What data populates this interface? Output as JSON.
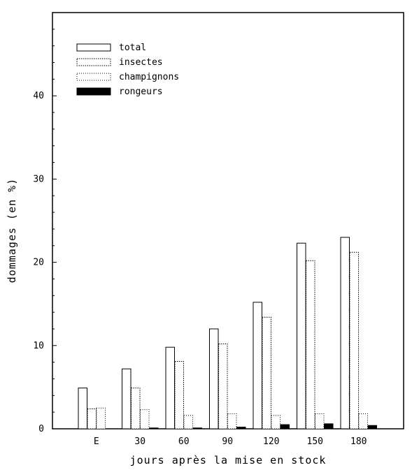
{
  "chart_data": {
    "type": "bar",
    "categories": [
      "E",
      "30",
      "60",
      "90",
      "120",
      "150",
      "180"
    ],
    "series": [
      {
        "name": "total",
        "values": [
          4.9,
          7.2,
          9.8,
          12.0,
          15.2,
          22.3,
          23.0
        ]
      },
      {
        "name": "insectes",
        "values": [
          2.4,
          4.9,
          8.1,
          10.2,
          13.4,
          20.2,
          21.2
        ]
      },
      {
        "name": "champignons",
        "values": [
          2.5,
          2.3,
          1.6,
          1.8,
          1.6,
          1.8,
          1.8
        ]
      },
      {
        "name": "rongeurs",
        "values": [
          0.0,
          0.1,
          0.1,
          0.2,
          0.5,
          0.6,
          0.4
        ]
      }
    ],
    "xlabel": "jours après la mise en stock",
    "ylabel": "dommages (en %)",
    "ylim": [
      0,
      50
    ],
    "yticks": [
      0,
      10,
      20,
      30,
      40
    ],
    "legend_position": "top-left",
    "grid": false,
    "colors": {
      "total": "#ffffff",
      "insectes": "#ffffff",
      "champignons": "#ffffff",
      "rongeurs": "#000000"
    }
  }
}
